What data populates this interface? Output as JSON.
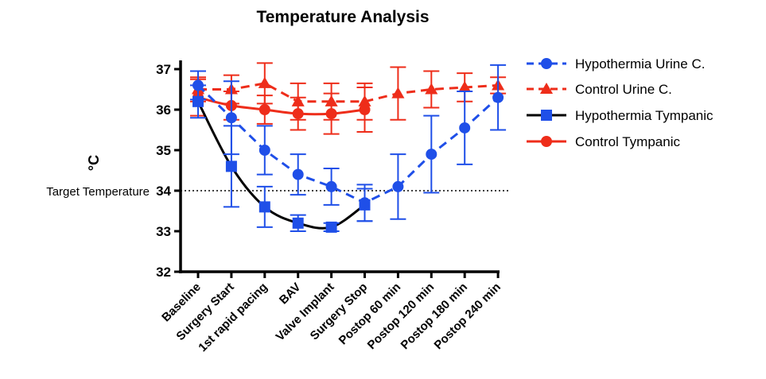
{
  "chart_data": {
    "type": "line",
    "title": "Temperature Analysis",
    "xlabel": "",
    "ylabel": "°C",
    "ylim": [
      32,
      37.3
    ],
    "yticks": [
      32,
      33,
      34,
      35,
      36,
      37
    ],
    "grid": false,
    "legend_position": "top-right",
    "categories": [
      "Baseline",
      "Surgery Start",
      "1st rapid pacing",
      "BAV",
      "Valve Implant",
      "Surgery Stop",
      "Postop 60 min",
      "Postop 120 min",
      "Postop 180 min",
      "Postop 240 min"
    ],
    "reference_line": {
      "label": "Target Temperature",
      "value": 34
    },
    "series": [
      {
        "name": "Hypothermia Urine C.",
        "color": "#1f4fe8",
        "marker": "circle",
        "line_style": "dashed",
        "values": [
          36.6,
          35.8,
          35.0,
          34.4,
          34.1,
          33.7,
          34.1,
          34.9,
          35.55,
          36.3
        ],
        "error": [
          0.35,
          0.9,
          0.6,
          0.5,
          0.45,
          0.45,
          0.8,
          0.95,
          0.9,
          0.8
        ]
      },
      {
        "name": "Control Urine C.",
        "color": "#ee2d1a",
        "marker": "triangle",
        "line_style": "dashed",
        "values": [
          36.5,
          36.5,
          36.65,
          36.2,
          36.2,
          36.2,
          36.4,
          36.5,
          36.55,
          36.6
        ],
        "error": [
          0.3,
          0.35,
          0.5,
          0.45,
          0.45,
          0.45,
          0.65,
          0.45,
          0.35,
          0.2
        ]
      },
      {
        "name": "Hypothermia Tympanic",
        "color": "#1f4fe8",
        "line_color": "#000000",
        "marker": "square",
        "line_style": "solid",
        "values": [
          36.2,
          34.6,
          33.6,
          33.2,
          33.1,
          33.65,
          null,
          null,
          null,
          null
        ],
        "error": [
          0.4,
          1.0,
          0.5,
          0.2,
          0.1,
          0.4,
          null,
          null,
          null,
          null
        ]
      },
      {
        "name": "Control Tympanic",
        "color": "#ee2d1a",
        "marker": "circle",
        "line_style": "solid",
        "values": [
          36.3,
          36.1,
          36.0,
          35.9,
          35.9,
          36.0,
          null,
          null,
          null,
          null
        ],
        "error": [
          0.45,
          0.35,
          0.35,
          0.4,
          0.5,
          0.55,
          null,
          null,
          null,
          null
        ]
      }
    ]
  }
}
